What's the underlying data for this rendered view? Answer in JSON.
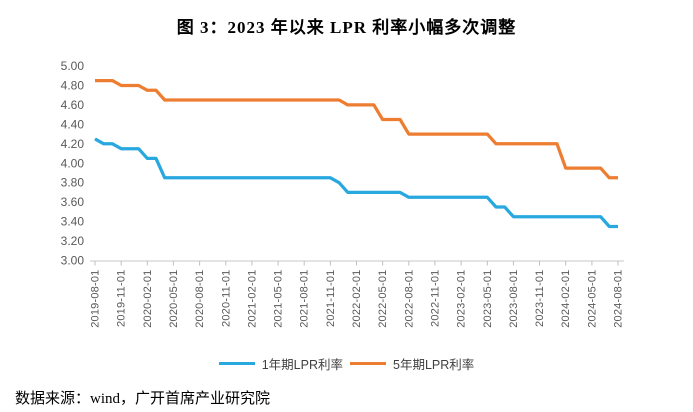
{
  "title": "图 3：2023 年以来 LPR 利率小幅多次调整",
  "source_note": "数据来源：wind，广开首席产业研究院",
  "legend": [
    {
      "label": "1年期LPR利率",
      "color": "#29A8E0"
    },
    {
      "label": "5年期LPR利率",
      "color": "#ED7D31"
    }
  ],
  "colors": {
    "axis_line": "#C9C9C9",
    "tick_mark": "#BFBFBF",
    "axis_text": "#595959",
    "series_1y_blue": "#29A8E0",
    "series_5y_orange": "#ED7D31",
    "title_text": "#000000"
  },
  "chart_data": {
    "type": "line",
    "title": "图 3：2023 年以来 LPR 利率小幅多次调整",
    "xlabel": "",
    "ylabel": "",
    "ylim": [
      3.0,
      5.0
    ],
    "ytick_step": 0.2,
    "ytick_labels": [
      "3.00",
      "3.20",
      "3.40",
      "3.60",
      "3.80",
      "4.00",
      "4.20",
      "4.40",
      "4.60",
      "4.80",
      "5.00"
    ],
    "grid": false,
    "legend_position": "bottom",
    "xtick_every_n_months": 3,
    "xtick_labels": [
      "2019-08-01",
      "2019-11-01",
      "2020-02-01",
      "2020-05-01",
      "2020-08-01",
      "2020-11-01",
      "2021-02-01",
      "2021-05-01",
      "2021-08-01",
      "2021-11-01",
      "2022-02-01",
      "2022-05-01",
      "2022-08-01",
      "2022-11-01",
      "2023-02-01",
      "2023-05-01",
      "2023-08-01",
      "2023-11-01",
      "2024-02-01",
      "2024-05-01",
      "2024-08-01"
    ],
    "x_months": [
      "2019-08",
      "2019-09",
      "2019-10",
      "2019-11",
      "2019-12",
      "2020-01",
      "2020-02",
      "2020-03",
      "2020-04",
      "2020-05",
      "2020-06",
      "2020-07",
      "2020-08",
      "2020-09",
      "2020-10",
      "2020-11",
      "2020-12",
      "2021-01",
      "2021-02",
      "2021-03",
      "2021-04",
      "2021-05",
      "2021-06",
      "2021-07",
      "2021-08",
      "2021-09",
      "2021-10",
      "2021-11",
      "2021-12",
      "2022-01",
      "2022-02",
      "2022-03",
      "2022-04",
      "2022-05",
      "2022-06",
      "2022-07",
      "2022-08",
      "2022-09",
      "2022-10",
      "2022-11",
      "2022-12",
      "2023-01",
      "2023-02",
      "2023-03",
      "2023-04",
      "2023-05",
      "2023-06",
      "2023-07",
      "2023-08",
      "2023-09",
      "2023-10",
      "2023-11",
      "2023-12",
      "2024-01",
      "2024-02",
      "2024-03",
      "2024-04",
      "2024-05",
      "2024-06",
      "2024-07",
      "2024-08"
    ],
    "series": [
      {
        "name": "1年期LPR利率",
        "color": "#29A8E0",
        "values": [
          4.25,
          4.2,
          4.2,
          4.15,
          4.15,
          4.15,
          4.05,
          4.05,
          3.85,
          3.85,
          3.85,
          3.85,
          3.85,
          3.85,
          3.85,
          3.85,
          3.85,
          3.85,
          3.85,
          3.85,
          3.85,
          3.85,
          3.85,
          3.85,
          3.85,
          3.85,
          3.85,
          3.85,
          3.8,
          3.7,
          3.7,
          3.7,
          3.7,
          3.7,
          3.7,
          3.7,
          3.65,
          3.65,
          3.65,
          3.65,
          3.65,
          3.65,
          3.65,
          3.65,
          3.65,
          3.65,
          3.55,
          3.55,
          3.45,
          3.45,
          3.45,
          3.45,
          3.45,
          3.45,
          3.45,
          3.45,
          3.45,
          3.45,
          3.45,
          3.35,
          3.35
        ]
      },
      {
        "name": "5年期LPR利率",
        "color": "#ED7D31",
        "values": [
          4.85,
          4.85,
          4.85,
          4.8,
          4.8,
          4.8,
          4.75,
          4.75,
          4.65,
          4.65,
          4.65,
          4.65,
          4.65,
          4.65,
          4.65,
          4.65,
          4.65,
          4.65,
          4.65,
          4.65,
          4.65,
          4.65,
          4.65,
          4.65,
          4.65,
          4.65,
          4.65,
          4.65,
          4.65,
          4.6,
          4.6,
          4.6,
          4.6,
          4.45,
          4.45,
          4.45,
          4.3,
          4.3,
          4.3,
          4.3,
          4.3,
          4.3,
          4.3,
          4.3,
          4.3,
          4.3,
          4.2,
          4.2,
          4.2,
          4.2,
          4.2,
          4.2,
          4.2,
          4.2,
          3.95,
          3.95,
          3.95,
          3.95,
          3.95,
          3.85,
          3.85
        ]
      }
    ]
  }
}
